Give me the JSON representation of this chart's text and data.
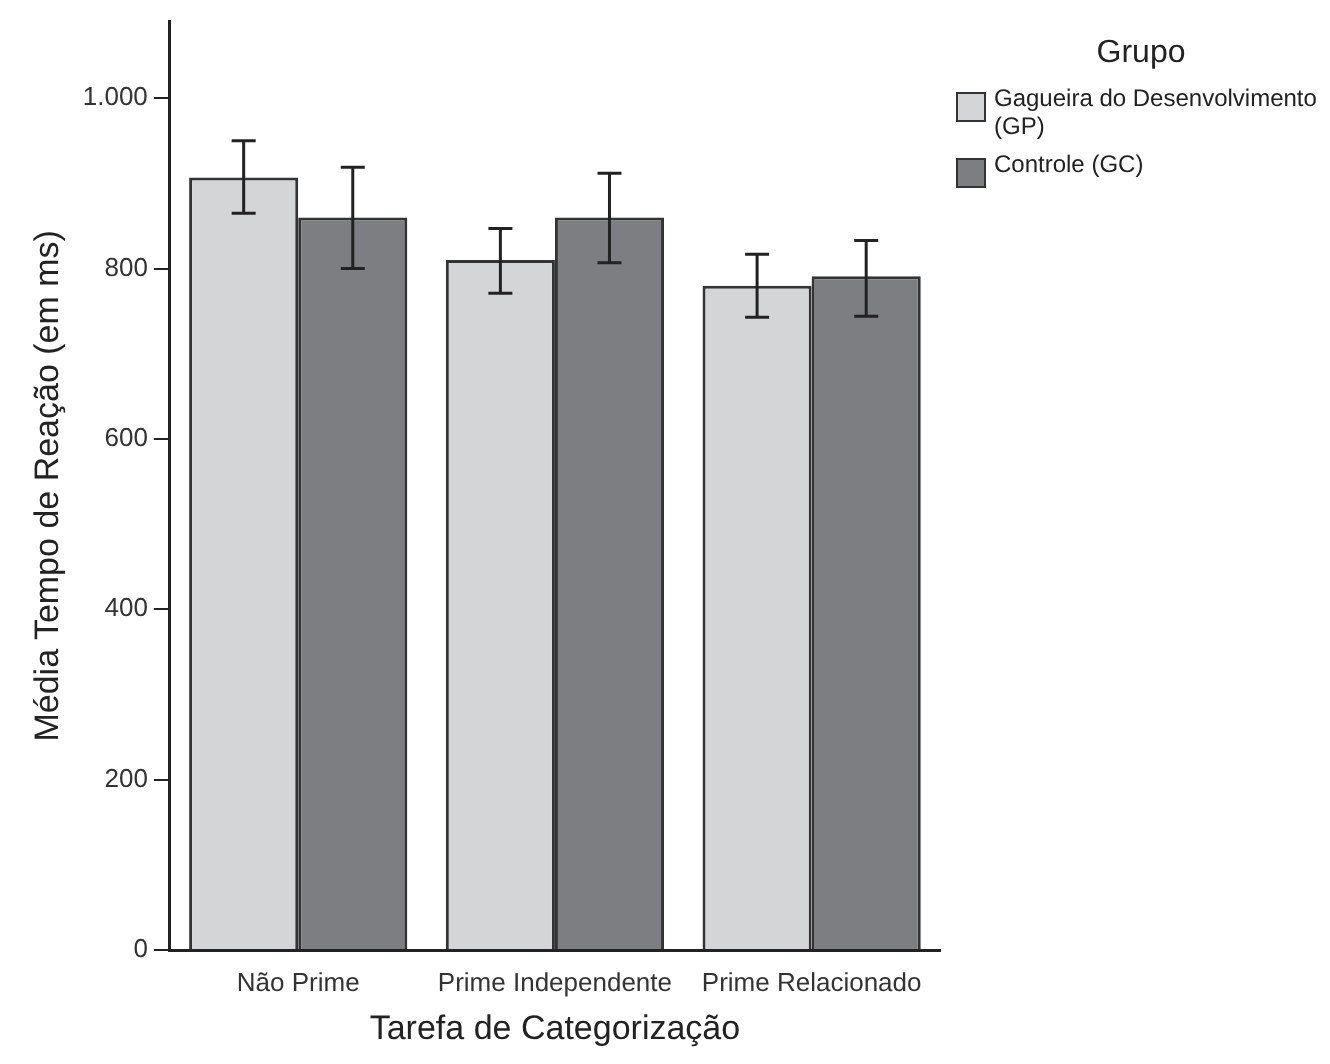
{
  "chart_data": {
    "type": "bar",
    "xlabel": "Tarefa de Categorização",
    "ylabel": "Média Tempo de Reação (em ms)",
    "legend_title": "Grupo",
    "categories": [
      "Não Prime",
      "Prime Independente",
      "Prime Relacionado"
    ],
    "series": [
      {
        "name": "Gagueira do Desenvolvimento (GP)",
        "color": "#d4d5d7",
        "values": [
          907,
          810,
          780
        ],
        "errors": [
          [
            865,
            950
          ],
          [
            771,
            847
          ],
          [
            743,
            817
          ]
        ]
      },
      {
        "name": "Controle (GC)",
        "color": "#7d7e82",
        "values": [
          860,
          860,
          791
        ],
        "errors": [
          [
            800,
            919
          ],
          [
            807,
            912
          ],
          [
            744,
            833
          ]
        ]
      }
    ],
    "ylim": [
      0,
      1090
    ],
    "yticks": [
      0,
      200,
      400,
      600,
      800,
      {
        "value": 1000,
        "label": "1.000"
      }
    ],
    "grid": false,
    "legend": "top right"
  }
}
